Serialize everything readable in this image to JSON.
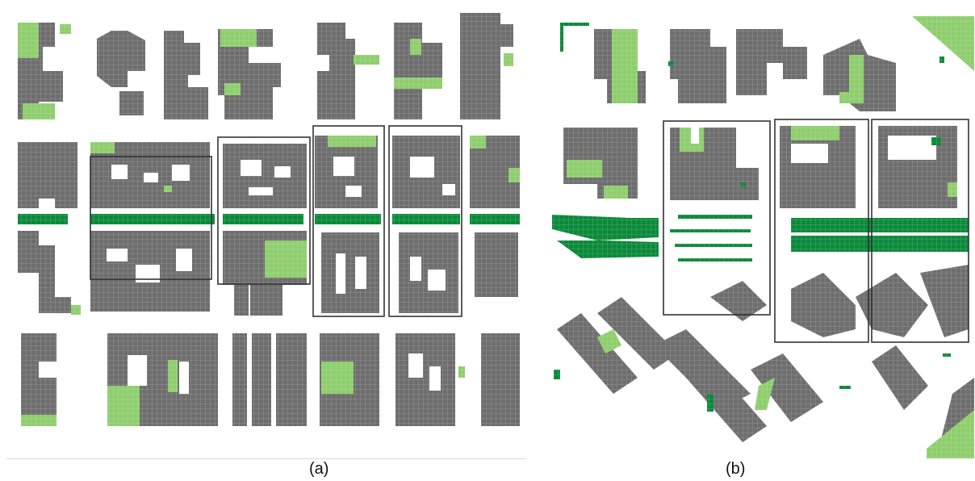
{
  "figure": {
    "panels": [
      {
        "id": "a",
        "caption": "(a)"
      },
      {
        "id": "b",
        "caption": "(b)"
      }
    ]
  },
  "colors": {
    "building": "#6e6e6e",
    "vegetation": "#8fce6e",
    "tree_row": "#0b8a3a",
    "frame": "#333333",
    "background": "#ffffff"
  }
}
